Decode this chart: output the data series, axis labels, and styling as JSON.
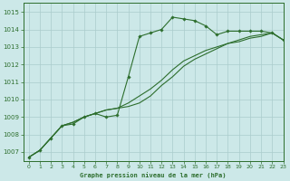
{
  "title": "Graphe pression niveau de la mer (hPa)",
  "background_color": "#cce8e8",
  "grid_color": "#aacccc",
  "line_color": "#2d6e2d",
  "xlim": [
    -0.5,
    23
  ],
  "ylim": [
    1006.5,
    1015.5
  ],
  "xticks": [
    0,
    1,
    2,
    3,
    4,
    5,
    6,
    7,
    8,
    9,
    10,
    11,
    12,
    13,
    14,
    15,
    16,
    17,
    18,
    19,
    20,
    21,
    22,
    23
  ],
  "yticks": [
    1007,
    1008,
    1009,
    1010,
    1011,
    1012,
    1013,
    1014,
    1015
  ],
  "series_marked": [
    1006.7,
    1007.1,
    1007.8,
    1008.5,
    1008.6,
    1009.0,
    1009.2,
    1009.0,
    1009.1,
    1011.3,
    1013.6,
    1013.8,
    1014.0,
    1014.7,
    1014.6,
    1014.5,
    1014.2,
    1013.7,
    1013.9,
    1013.9,
    1013.9,
    1013.9,
    1013.8,
    1013.4
  ],
  "series2": [
    1006.7,
    1007.1,
    1007.8,
    1008.5,
    1008.7,
    1009.0,
    1009.2,
    1009.4,
    1009.5,
    1009.6,
    1009.8,
    1010.2,
    1010.8,
    1011.3,
    1011.9,
    1012.3,
    1012.6,
    1012.9,
    1013.2,
    1013.4,
    1013.6,
    1013.7,
    1013.8,
    1013.4
  ],
  "series3": [
    1006.7,
    1007.1,
    1007.8,
    1008.5,
    1008.7,
    1009.0,
    1009.2,
    1009.4,
    1009.5,
    1009.8,
    1010.2,
    1010.6,
    1011.1,
    1011.7,
    1012.2,
    1012.5,
    1012.8,
    1013.0,
    1013.2,
    1013.3,
    1013.5,
    1013.6,
    1013.8,
    1013.4
  ],
  "figsize": [
    3.2,
    2.0
  ],
  "dpi": 100
}
